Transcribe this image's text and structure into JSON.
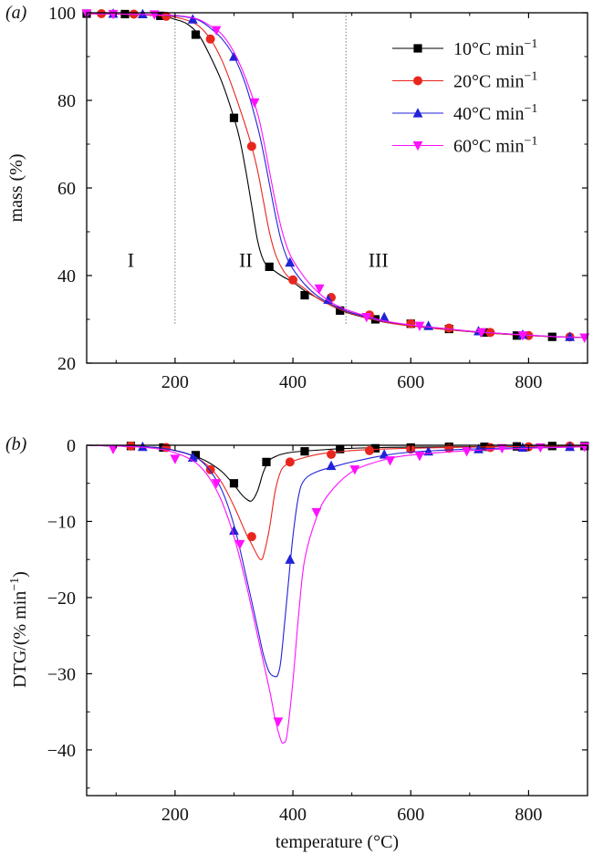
{
  "chart_data": [
    {
      "panel_label": "(a)",
      "type": "line",
      "xlabel": "",
      "ylabel": "mass (%)",
      "xlim": [
        50,
        900
      ],
      "ylim": [
        20,
        100
      ],
      "xticks": [
        200,
        400,
        600,
        800
      ],
      "yticks": [
        20,
        40,
        60,
        80,
        100
      ],
      "grid": false,
      "legend_position": "top-right",
      "region_dividers_x": [
        200,
        490
      ],
      "region_labels": [
        {
          "text": "I",
          "x": 125,
          "y": 42
        },
        {
          "text": "II",
          "x": 320,
          "y": 42
        },
        {
          "text": "III",
          "x": 545,
          "y": 42
        }
      ],
      "series": [
        {
          "name": "10°C min",
          "name_sup": "−1",
          "color": "#000000",
          "marker": "square",
          "x": [
            50,
            100,
            150,
            180,
            200,
            220,
            240,
            260,
            280,
            300,
            310,
            320,
            330,
            340,
            350,
            360,
            380,
            400,
            420,
            440,
            460,
            480,
            500,
            550,
            600,
            650,
            700,
            750,
            800,
            850,
            900
          ],
          "y": [
            99.8,
            99.7,
            99.5,
            99.2,
            98.5,
            97.5,
            95,
            90,
            84,
            76,
            71,
            64,
            56,
            48,
            43.5,
            42,
            40,
            38.5,
            36.5,
            35,
            33.5,
            32.2,
            31.2,
            29.5,
            28.5,
            27.8,
            27.2,
            26.7,
            26.3,
            26,
            25.8
          ],
          "markers_x": [
            50,
            115,
            175,
            235,
            300,
            360,
            420,
            480,
            540,
            600,
            665,
            725,
            780,
            840
          ],
          "markers_y": [
            99.8,
            99.7,
            99.3,
            95,
            76,
            42,
            35.5,
            32,
            30,
            29,
            27.8,
            27,
            26.3,
            26
          ]
        },
        {
          "name": "20°C min",
          "name_sup": "−1",
          "color": "#e8261e",
          "marker": "circle",
          "x": [
            50,
            100,
            150,
            180,
            200,
            220,
            240,
            260,
            280,
            300,
            320,
            330,
            340,
            350,
            360,
            370,
            380,
            390,
            400,
            420,
            440,
            460,
            480,
            500,
            550,
            600,
            650,
            700,
            750,
            800,
            850,
            900
          ],
          "y": [
            99.8,
            99.7,
            99.5,
            99.3,
            99,
            98.3,
            97,
            94,
            89,
            82,
            74,
            69.5,
            64,
            57,
            50,
            45,
            42,
            40,
            39,
            37,
            35,
            33.5,
            32.3,
            31.3,
            29.5,
            28.5,
            27.8,
            27.2,
            26.7,
            26.3,
            26,
            25.8
          ],
          "markers_x": [
            75,
            130,
            185,
            260,
            330,
            400,
            465,
            530,
            600,
            665,
            735,
            800,
            870
          ],
          "markers_y": [
            99.8,
            99.7,
            99.2,
            94,
            69.5,
            39,
            35,
            31,
            29,
            28,
            27,
            26.3,
            26
          ]
        },
        {
          "name": "40°C min",
          "name_sup": "−1",
          "color": "#2222d8",
          "marker": "triangle-up",
          "x": [
            50,
            100,
            150,
            180,
            200,
            220,
            240,
            260,
            280,
            300,
            320,
            340,
            350,
            360,
            370,
            380,
            390,
            400,
            420,
            440,
            460,
            480,
            500,
            550,
            600,
            650,
            700,
            750,
            800,
            850,
            900
          ],
          "y": [
            99.8,
            99.7,
            99.6,
            99.5,
            99.3,
            99,
            98.3,
            96.5,
            94,
            90,
            83.5,
            74,
            68,
            61,
            54,
            48,
            44,
            41.5,
            38,
            35.5,
            33.8,
            32.5,
            31.5,
            29.7,
            28.7,
            28,
            27.3,
            26.8,
            26.4,
            26,
            25.8
          ],
          "markers_x": [
            95,
            145,
            230,
            300,
            395,
            460,
            555,
            630,
            715,
            790,
            870
          ],
          "markers_y": [
            99.8,
            99.7,
            98.5,
            90,
            43,
            34.5,
            30.5,
            28.5,
            27.3,
            26.5,
            26
          ]
        },
        {
          "name": "60°C min",
          "name_sup": "−1",
          "color": "#ff10ff",
          "marker": "triangle-down",
          "x": [
            50,
            100,
            150,
            180,
            200,
            220,
            240,
            260,
            280,
            300,
            320,
            340,
            350,
            360,
            370,
            380,
            390,
            400,
            420,
            440,
            460,
            480,
            500,
            550,
            600,
            650,
            700,
            750,
            800,
            850,
            900
          ],
          "y": [
            99.8,
            99.7,
            99.6,
            99.5,
            99.4,
            99.1,
            98.5,
            97,
            95,
            91,
            85,
            77,
            71,
            64,
            57,
            51,
            46.5,
            43.5,
            39.5,
            36.5,
            34.3,
            32.8,
            31.8,
            29.8,
            28.7,
            28,
            27.3,
            26.8,
            26.4,
            26,
            25.8
          ],
          "markers_x": [
            50,
            95,
            165,
            270,
            335,
            445,
            525,
            615,
            720,
            790,
            895
          ],
          "markers_y": [
            99.8,
            99.7,
            99.6,
            96,
            79.5,
            37,
            30.5,
            28.5,
            27,
            26.3,
            25.8
          ]
        }
      ]
    },
    {
      "panel_label": "(b)",
      "type": "line",
      "xlabel": "temperature (°C)",
      "ylabel": "DTG/(% min",
      "ylabel_sup": "−1",
      "ylabel_close": ")",
      "xlim": [
        50,
        900
      ],
      "ylim": [
        -46,
        0
      ],
      "xticks": [
        200,
        400,
        600,
        800
      ],
      "yticks": [
        0,
        -10,
        -20,
        -30,
        -40
      ],
      "grid": false,
      "series": [
        {
          "name": "10°C min−1",
          "color": "#000000",
          "marker": "square",
          "x": [
            50,
            100,
            150,
            180,
            200,
            220,
            240,
            260,
            280,
            300,
            310,
            320,
            330,
            340,
            350,
            360,
            370,
            380,
            400,
            450,
            500,
            550,
            600,
            700,
            800,
            900
          ],
          "y": [
            0,
            -0.1,
            -0.2,
            -0.4,
            -0.7,
            -1.1,
            -1.6,
            -2.4,
            -3.5,
            -5.2,
            -6.2,
            -7,
            -7.3,
            -6,
            -3.5,
            -2,
            -1.5,
            -1.2,
            -0.9,
            -0.6,
            -0.4,
            -0.3,
            -0.25,
            -0.2,
            -0.15,
            -0.1
          ],
          "markers_x": [
            125,
            180,
            235,
            300,
            355,
            420,
            480,
            540,
            600,
            665,
            725,
            780,
            840,
            895
          ],
          "markers_y": [
            -0.1,
            -0.3,
            -1.3,
            -5,
            -2.2,
            -0.8,
            -0.5,
            -0.4,
            -0.3,
            -0.2,
            -0.2,
            -0.15,
            -0.1,
            -0.1
          ]
        },
        {
          "name": "20°C min−1",
          "color": "#e8261e",
          "marker": "circle",
          "x": [
            50,
            100,
            150,
            180,
            200,
            220,
            240,
            260,
            280,
            300,
            320,
            330,
            340,
            345,
            350,
            360,
            370,
            380,
            390,
            400,
            420,
            450,
            500,
            550,
            600,
            700,
            800,
            900
          ],
          "y": [
            0,
            -0.1,
            -0.2,
            -0.4,
            -0.7,
            -1.1,
            -1.8,
            -3,
            -5,
            -8,
            -11.5,
            -13,
            -14.5,
            -15,
            -14.5,
            -11,
            -6,
            -3.3,
            -2.5,
            -2.1,
            -1.6,
            -1.1,
            -0.7,
            -0.5,
            -0.4,
            -0.25,
            -0.15,
            -0.1
          ],
          "markers_x": [
            125,
            185,
            260,
            330,
            395,
            465,
            530,
            600,
            665,
            735,
            800,
            870
          ],
          "markers_y": [
            -0.1,
            -0.3,
            -3.2,
            -12,
            -2.2,
            -1.2,
            -0.7,
            -0.5,
            -0.4,
            -0.3,
            -0.2,
            -0.1
          ]
        },
        {
          "name": "40°C min−1",
          "color": "#2222d8",
          "marker": "triangle-up",
          "x": [
            50,
            100,
            150,
            180,
            200,
            220,
            240,
            260,
            280,
            300,
            320,
            340,
            350,
            360,
            370,
            375,
            380,
            390,
            400,
            410,
            420,
            440,
            470,
            500,
            550,
            600,
            700,
            800,
            900
          ],
          "y": [
            0,
            -0.1,
            -0.2,
            -0.4,
            -0.7,
            -1.1,
            -1.8,
            -3.4,
            -6,
            -10.5,
            -17,
            -24,
            -27.5,
            -29.8,
            -30.4,
            -30,
            -28,
            -20,
            -12,
            -6.5,
            -4.5,
            -3.5,
            -2.8,
            -2.2,
            -1.4,
            -0.9,
            -0.5,
            -0.3,
            -0.2
          ],
          "markers_x": [
            145,
            230,
            300,
            395,
            465,
            555,
            630,
            715,
            790,
            870
          ],
          "markers_y": [
            -0.2,
            -1.6,
            -11.2,
            -15,
            -2.7,
            -1.2,
            -0.8,
            -0.5,
            -0.3,
            -0.2
          ]
        },
        {
          "name": "60°C min−1",
          "color": "#ff10ff",
          "marker": "triangle-down",
          "x": [
            50,
            100,
            150,
            180,
            200,
            220,
            240,
            260,
            280,
            300,
            320,
            340,
            360,
            370,
            380,
            385,
            390,
            400,
            410,
            420,
            440,
            460,
            500,
            550,
            600,
            700,
            800,
            900
          ],
          "y": [
            0,
            -0.1,
            -0.3,
            -0.6,
            -1,
            -1.6,
            -2.6,
            -4.5,
            -7.5,
            -12,
            -18,
            -25,
            -32,
            -36,
            -38.8,
            -39,
            -38,
            -31,
            -22,
            -15,
            -9.5,
            -6.5,
            -3.5,
            -2,
            -1.3,
            -0.7,
            -0.4,
            -0.2
          ],
          "markers_x": [
            95,
            200,
            270,
            310,
            375,
            440,
            505,
            565,
            615,
            695,
            755,
            820,
            895
          ],
          "markers_y": [
            -0.5,
            -1.8,
            -5,
            -13,
            -36.3,
            -8.8,
            -3.2,
            -2,
            -1.4,
            -0.8,
            -0.4,
            -0.3,
            -0.2
          ]
        }
      ]
    }
  ]
}
